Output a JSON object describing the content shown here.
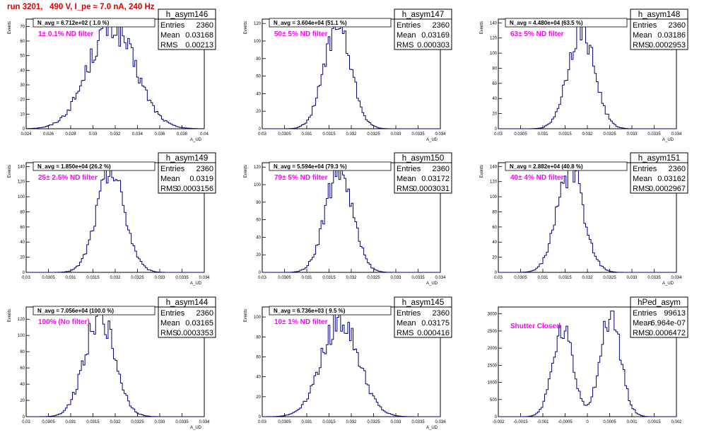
{
  "header": {
    "title": "run 3201,   490 V, I_pe ≈ 7.0 nA, 240 Hz",
    "color": "#e00000"
  },
  "colors": {
    "line": "#000080",
    "label": "#ff00ff",
    "frame": "#000000"
  },
  "stats_labels": {
    "entries": "Entries",
    "mean": "Mean",
    "rms": "RMS"
  },
  "chart_data": [
    {
      "type": "histogram",
      "name": "h_asym146",
      "title": "N_avg = 6.712e+02 ( 1.0 %)",
      "label": "1± 0.1% ND filter",
      "ylabel": "Events",
      "xlabel": "A_UD",
      "xlim": [
        0.024,
        0.04
      ],
      "ylim": [
        0,
        75
      ],
      "xticks": [
        0.024,
        0.026,
        0.028,
        0.03,
        0.032,
        0.034,
        0.036,
        0.038,
        0.04
      ],
      "xtick_labels": [
        "0.024",
        "0.026",
        "0.028",
        "0.03",
        "0.032",
        "0.034",
        "0.036",
        "0.038",
        "0.04"
      ],
      "yticks": [
        0,
        10,
        20,
        30,
        40,
        50,
        60,
        70
      ],
      "ytick_labels": [
        "0",
        "10",
        "20",
        "30",
        "40",
        "50",
        "60",
        "70"
      ],
      "stats": {
        "entries": "2360",
        "mean": "0.03168",
        "rms": "0.00213"
      },
      "dist": {
        "mean": 0.03168,
        "sigma": 0.00213,
        "peak": 72
      }
    },
    {
      "type": "histogram",
      "name": "h_asym147",
      "title": "N_avg = 3.604e+04 (51.1 %)",
      "label": "50± 5% ND filter",
      "ylabel": "Events",
      "xlabel": "A_UD",
      "xlim": [
        0.03,
        0.034
      ],
      "ylim": [
        0,
        125
      ],
      "xticks": [
        0.03,
        0.0305,
        0.031,
        0.0315,
        0.032,
        0.0325,
        0.033,
        0.0335,
        0.034
      ],
      "xtick_labels": [
        "0.03",
        "0.0305",
        "0.031",
        "0.0315",
        "0.032",
        "0.0325",
        "0.033",
        "0.0335",
        "0.034"
      ],
      "yticks": [
        0,
        20,
        40,
        60,
        80,
        100,
        120
      ],
      "ytick_labels": [
        "0",
        "20",
        "40",
        "60",
        "80",
        "100",
        "120"
      ],
      "stats": {
        "entries": "2360",
        "mean": "0.03169",
        "rms": "0.000303"
      },
      "dist": {
        "mean": 0.03169,
        "sigma": 0.000303,
        "peak": 120
      }
    },
    {
      "type": "histogram",
      "name": "h_asym148",
      "title": "N_avg = 4.480e+04 (63.5 %)",
      "label": "63± 5% ND filter",
      "ylabel": "Events",
      "xlabel": "A_UD",
      "xlim": [
        0.03,
        0.034
      ],
      "ylim": [
        0,
        145
      ],
      "xticks": [
        0.03,
        0.0305,
        0.031,
        0.0315,
        0.032,
        0.0325,
        0.033,
        0.0335,
        0.034
      ],
      "xtick_labels": [
        "0.03",
        "0.0305",
        "0.031",
        "0.0315",
        "0.032",
        "0.0325",
        "0.033",
        "0.0335",
        "0.034"
      ],
      "yticks": [
        0,
        20,
        40,
        60,
        80,
        100,
        120,
        140
      ],
      "ytick_labels": [
        "0",
        "20",
        "40",
        "60",
        "80",
        "100",
        "120",
        "140"
      ],
      "stats": {
        "entries": "2360",
        "mean": "0.03186",
        "rms": "0.0002953"
      },
      "dist": {
        "mean": 0.03186,
        "sigma": 0.000295,
        "peak": 138
      }
    },
    {
      "type": "histogram",
      "name": "h_asym149",
      "title": "N_avg = 1.850e+04 (26.2 %)",
      "label": "25± 2.5% ND filter",
      "ylabel": "Events",
      "xlabel": "A_UD",
      "xlim": [
        0.03,
        0.034
      ],
      "ylim": [
        0,
        145
      ],
      "xticks": [
        0.03,
        0.0305,
        0.031,
        0.0315,
        0.032,
        0.0325,
        0.033,
        0.0335,
        0.034
      ],
      "xtick_labels": [
        "0.03",
        "0.0305",
        "0.031",
        "0.0315",
        "0.032",
        "0.0325",
        "0.033",
        "0.0335",
        "0.034"
      ],
      "yticks": [
        0,
        20,
        40,
        60,
        80,
        100,
        120,
        140
      ],
      "ytick_labels": [
        "0",
        "20",
        "40",
        "60",
        "80",
        "100",
        "120",
        "140"
      ],
      "stats": {
        "entries": "2360",
        "mean": "0.0319",
        "rms": "0.0003156"
      },
      "dist": {
        "mean": 0.0319,
        "sigma": 0.000316,
        "peak": 140
      }
    },
    {
      "type": "histogram",
      "name": "h_asym150",
      "title": "N_avg = 5.594e+04 (79.3 %)",
      "label": "79± 5% ND filter",
      "ylabel": "Events",
      "xlabel": "A_UD",
      "xlim": [
        0.03,
        0.034
      ],
      "ylim": [
        0,
        125
      ],
      "xticks": [
        0.03,
        0.0305,
        0.031,
        0.0315,
        0.032,
        0.0325,
        0.033,
        0.0335,
        0.034
      ],
      "xtick_labels": [
        "0.03",
        "0.0305",
        "0.031",
        "0.0315",
        "0.032",
        "0.0325",
        "0.033",
        "0.0335",
        "0.034"
      ],
      "yticks": [
        0,
        20,
        40,
        60,
        80,
        100,
        120
      ],
      "ytick_labels": [
        "0",
        "20",
        "40",
        "60",
        "80",
        "100",
        "120"
      ],
      "stats": {
        "entries": "2360",
        "mean": "0.03172",
        "rms": "0.0003031"
      },
      "dist": {
        "mean": 0.03172,
        "sigma": 0.000303,
        "peak": 122
      }
    },
    {
      "type": "histogram",
      "name": "h_asym151",
      "title": "N_avg = 2.882e+04 (40.8 %)",
      "label": "40± 4% ND filter",
      "ylabel": "Events",
      "xlabel": "A_UD",
      "xlim": [
        0.03,
        0.034
      ],
      "ylim": [
        0,
        145
      ],
      "xticks": [
        0.03,
        0.0305,
        0.031,
        0.0315,
        0.032,
        0.0325,
        0.033,
        0.0335,
        0.034
      ],
      "xtick_labels": [
        "0.03",
        "0.0305",
        "0.031",
        "0.0315",
        "0.032",
        "0.0325",
        "0.033",
        "0.0335",
        "0.034"
      ],
      "yticks": [
        0,
        20,
        40,
        60,
        80,
        100,
        120,
        140
      ],
      "ytick_labels": [
        "0",
        "20",
        "40",
        "60",
        "80",
        "100",
        "120",
        "140"
      ],
      "stats": {
        "entries": "2360",
        "mean": "0.03162",
        "rms": "0.0002967"
      },
      "dist": {
        "mean": 0.03162,
        "sigma": 0.000297,
        "peak": 140
      }
    },
    {
      "type": "histogram",
      "name": "h_asym144",
      "title": "N_avg = 7.056e+04 (100.0 %)",
      "label": "100% (No filter)",
      "ylabel": "Events",
      "xlabel": "A_UD",
      "xlim": [
        0.03,
        0.034
      ],
      "ylim": [
        0,
        135
      ],
      "xticks": [
        0.03,
        0.0305,
        0.031,
        0.0315,
        0.032,
        0.0325,
        0.033,
        0.0335,
        0.034
      ],
      "xtick_labels": [
        "0.03",
        "0.0305",
        "0.031",
        "0.0315",
        "0.032",
        "0.0325",
        "0.033",
        "0.0335",
        "0.034"
      ],
      "yticks": [
        0,
        20,
        40,
        60,
        80,
        100,
        120
      ],
      "ytick_labels": [
        "0",
        "20",
        "40",
        "60",
        "80",
        "100",
        "120"
      ],
      "stats": {
        "entries": "2360",
        "mean": "0.03165",
        "rms": "0.0003353"
      },
      "dist": {
        "mean": 0.03165,
        "sigma": 0.000335,
        "peak": 130
      }
    },
    {
      "type": "histogram",
      "name": "h_asym145",
      "title": "N_avg = 6.736e+03 ( 9.5 %)",
      "label": "10± 1% ND filter",
      "ylabel": "Events",
      "xlabel": "A_UD",
      "xlim": [
        0.03,
        0.034
      ],
      "ylim": [
        0,
        110
      ],
      "xticks": [
        0.03,
        0.0305,
        0.031,
        0.0315,
        0.032,
        0.0325,
        0.033,
        0.0335,
        0.034
      ],
      "xtick_labels": [
        "0.03",
        "0.0305",
        "0.031",
        "0.0315",
        "0.032",
        "0.0325",
        "0.033",
        "0.0335",
        "0.034"
      ],
      "yticks": [
        0,
        20,
        40,
        60,
        80,
        100
      ],
      "ytick_labels": [
        "0",
        "20",
        "40",
        "60",
        "80",
        "100"
      ],
      "stats": {
        "entries": "2360",
        "mean": "0.03175",
        "rms": "0.000416"
      },
      "dist": {
        "mean": 0.03175,
        "sigma": 0.000416,
        "peak": 100
      }
    },
    {
      "type": "histogram",
      "name": "hPed_asym",
      "title": "",
      "label": "Shutter Closed",
      "ylabel": "",
      "xlabel": "",
      "xlim": [
        -0.002,
        0.002
      ],
      "ylim": [
        0,
        3200
      ],
      "xticks": [
        -0.002,
        -0.0015,
        -0.001,
        -0.0005,
        0,
        0.0005,
        0.001,
        0.0015,
        0.002
      ],
      "xtick_labels": [
        "-0.002",
        "-0.0015",
        "-0.001",
        "-0.0005",
        "0",
        "0.0005",
        "0.001",
        "0.0015",
        "0.002"
      ],
      "yticks": [
        0,
        500,
        1000,
        1500,
        2000,
        2500,
        3000
      ],
      "ytick_labels": [
        "0",
        "500",
        "1000",
        "1500",
        "2000",
        "2500",
        "3000"
      ],
      "stats": {
        "entries": "99613",
        "mean": "-6.964e-07",
        "rms": "0.0006472"
      },
      "dist": {
        "bimodal": true,
        "mean1": -0.00055,
        "mean2": 0.00052,
        "sigma": 0.00023,
        "peak1": 2550,
        "peak2": 3000
      }
    }
  ]
}
